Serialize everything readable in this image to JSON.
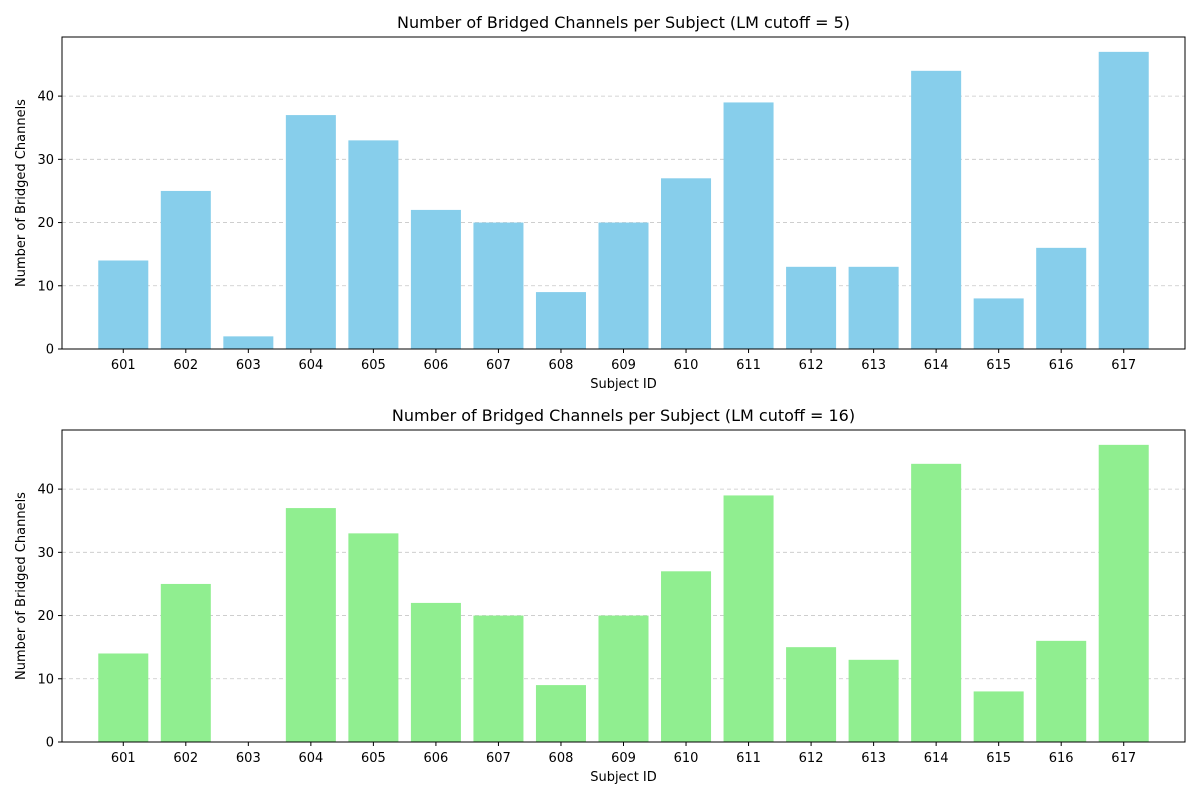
{
  "chart_data": [
    {
      "type": "bar",
      "title": "Number of Bridged Channels per Subject (LM cutoff = 5)",
      "xlabel": "Subject ID",
      "ylabel": "Number of Bridged Channels",
      "categories": [
        "601",
        "602",
        "603",
        "604",
        "605",
        "606",
        "607",
        "608",
        "609",
        "610",
        "611",
        "612",
        "613",
        "614",
        "615",
        "616",
        "617"
      ],
      "values": [
        14,
        25,
        2,
        37,
        33,
        22,
        20,
        9,
        20,
        27,
        39,
        13,
        13,
        44,
        8,
        16,
        47
      ],
      "yticks": [
        0,
        10,
        20,
        30,
        40
      ],
      "ylim": [
        0,
        49.35
      ],
      "grid": "y",
      "color": "#87ceeb"
    },
    {
      "type": "bar",
      "title": "Number of Bridged Channels per Subject (LM cutoff = 16)",
      "xlabel": "Subject ID",
      "ylabel": "Number of Bridged Channels",
      "categories": [
        "601",
        "602",
        "603",
        "604",
        "605",
        "606",
        "607",
        "608",
        "609",
        "610",
        "611",
        "612",
        "613",
        "614",
        "615",
        "616",
        "617"
      ],
      "values": [
        14,
        25,
        0,
        37,
        33,
        22,
        20,
        9,
        20,
        27,
        39,
        15,
        13,
        44,
        8,
        16,
        47
      ],
      "yticks": [
        0,
        10,
        20,
        30,
        40
      ],
      "ylim": [
        0,
        49.35
      ],
      "grid": "y",
      "color": "#90ee90"
    }
  ]
}
